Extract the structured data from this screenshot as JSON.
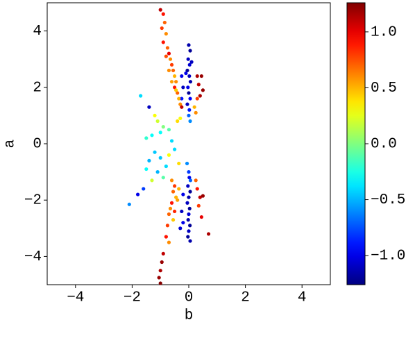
{
  "chart_data": {
    "type": "scatter",
    "xlabel": "b",
    "ylabel": "a",
    "colormap": "jet",
    "xlim": [
      -5,
      5
    ],
    "ylim": [
      -5,
      5
    ],
    "clim": [
      -1.26,
      1.26
    ],
    "xticks": [
      {
        "value": -4,
        "label": "−4"
      },
      {
        "value": -2,
        "label": "−2"
      },
      0,
      2,
      4
    ],
    "yticks": [
      {
        "value": -4,
        "label": "−4"
      },
      {
        "value": -2,
        "label": "−2"
      },
      0,
      2,
      4
    ],
    "cticks": [
      {
        "value": -1,
        "label": "−1.0"
      },
      {
        "value": -0.5,
        "label": "−0.5"
      },
      {
        "value": 0,
        "label": "0.0"
      },
      {
        "value": 0.5,
        "label": "0.5"
      },
      {
        "value": 1,
        "label": "1.0"
      }
    ],
    "x": [
      0,
      0.05,
      -0.02,
      0.03,
      -0.05,
      0.02,
      0.06,
      -0.03,
      0,
      0.05,
      -0.05,
      0.02,
      0,
      0.05,
      -0.1,
      0.1,
      0,
      0.02,
      -0.03,
      0.05,
      0,
      -0.05,
      0.03,
      0,
      -0.02,
      0.04,
      0,
      -0.03,
      0.05,
      0.06,
      -0.06,
      -0.25,
      -0.2,
      -0.25,
      -0.2,
      -0.25,
      -0.2,
      -0.3,
      -1.0,
      -0.9,
      -0.85,
      -0.95,
      -0.8,
      -0.9,
      -0.75,
      -0.7,
      -0.65,
      -0.6,
      -0.55,
      -0.5,
      -0.45,
      -0.5,
      -0.4,
      -0.35,
      -0.3,
      -0.6,
      -0.7,
      -0.8,
      -0.45,
      -0.25,
      0.3,
      0.45,
      0.35,
      0.5,
      0.4,
      0.3,
      0.2,
      0.25,
      -1.7,
      -1.4,
      -1.2,
      -1.1,
      -0.9,
      -0.7,
      -1.0,
      -1.5,
      -1.3,
      -0.6,
      -0.5,
      -1.2,
      -1.4,
      -1.0,
      -0.7,
      -0.8,
      -1.5,
      -1.1,
      -0.9,
      -1.3,
      -1.6,
      -1.8,
      -2.1,
      -0.4,
      -0.3,
      -0.35,
      -0.6,
      -0.5,
      -0.55,
      -0.45,
      -0.6,
      -0.65,
      -0.7,
      -0.55,
      -0.75,
      -0.8,
      -0.7,
      -0.4,
      -0.35,
      -0.5,
      -0.9,
      -0.95,
      -1.0,
      -1.05,
      -1.0,
      0.3,
      0.4,
      0.5,
      0.35,
      0.45,
      0.7,
      0.25
    ],
    "y": [
      3.5,
      3.3,
      3.0,
      2.8,
      2.6,
      2.4,
      2.2,
      2.0,
      1.8,
      1.6,
      1.4,
      1.2,
      1.0,
      0.8,
      2.5,
      2.9,
      -1.0,
      -1.2,
      -1.5,
      -1.7,
      -1.9,
      -2.1,
      -2.3,
      -2.5,
      -2.7,
      -2.9,
      -3.1,
      -3.3,
      -3.45,
      -1.3,
      -0.7,
      2.4,
      2.0,
      1.6,
      -1.8,
      -2.4,
      -2.8,
      -3.0,
      4.75,
      4.6,
      4.3,
      4.1,
      3.9,
      3.6,
      3.4,
      3.2,
      3.0,
      2.8,
      2.6,
      2.4,
      2.2,
      2.0,
      1.8,
      1.6,
      1.4,
      2.2,
      2.6,
      3.1,
      1.9,
      1.3,
      2.4,
      2.4,
      2.1,
      1.9,
      1.7,
      1.6,
      1.3,
      1.1,
      1.7,
      1.3,
      1.0,
      0.8,
      0.6,
      0.5,
      0.4,
      0.2,
      0.3,
      0.1,
      -0.2,
      -0.3,
      -0.6,
      -0.5,
      -0.4,
      -0.8,
      -0.9,
      -1.0,
      -1.2,
      -1.3,
      -1.6,
      -1.8,
      -2.15,
      0.8,
      0.9,
      -0.7,
      -1.3,
      -1.5,
      -1.7,
      -1.9,
      -2.1,
      -2.3,
      -2.5,
      -2.7,
      -2.9,
      -3.3,
      -3.5,
      -2.0,
      -1.6,
      -2.4,
      -3.9,
      -4.2,
      -4.5,
      -4.75,
      -4.95,
      -1.6,
      -1.9,
      -1.85,
      -2.2,
      -2.6,
      -3.2,
      -1.3
    ],
    "c": [
      -1.15,
      -1.2,
      -1.1,
      -1.05,
      -1.2,
      -1.1,
      -1.15,
      -1.0,
      -1.2,
      -0.95,
      -1.1,
      -0.9,
      -0.7,
      -0.6,
      -1.0,
      -1.1,
      -0.8,
      -1.0,
      -1.1,
      -1.2,
      -1.15,
      -1.1,
      -1.2,
      -1.05,
      -1.15,
      -1.2,
      -1.1,
      -1.2,
      -1.15,
      -0.7,
      -0.6,
      -1.0,
      -1.1,
      -0.9,
      -1.0,
      -1.1,
      -1.0,
      -1.05,
      1.1,
      0.9,
      0.7,
      0.8,
      0.6,
      0.9,
      0.7,
      1.0,
      0.6,
      0.8,
      0.7,
      0.5,
      0.6,
      0.9,
      0.7,
      0.5,
      0.6,
      0.55,
      0.6,
      0.75,
      0.45,
      1.1,
      1.15,
      1.2,
      1.1,
      1.2,
      1.15,
      0.8,
      0.5,
      0.6,
      -0.4,
      -1.1,
      0.3,
      0.2,
      0.0,
      -0.1,
      -0.3,
      -0.2,
      -0.3,
      -0.4,
      -0.4,
      -0.45,
      -0.5,
      -0.45,
      0.3,
      -0.4,
      -0.3,
      -0.5,
      -0.1,
      0.2,
      -0.8,
      -1.0,
      -0.6,
      0.4,
      0.3,
      0.4,
      0.6,
      0.8,
      0.7,
      0.5,
      0.9,
      0.6,
      0.7,
      0.45,
      0.8,
      0.9,
      0.6,
      0.55,
      0.5,
      0.85,
      1.1,
      1.2,
      1.15,
      1.2,
      1.25,
      0.9,
      1.1,
      1.2,
      0.8,
      1.0,
      1.15,
      0.7
    ]
  }
}
